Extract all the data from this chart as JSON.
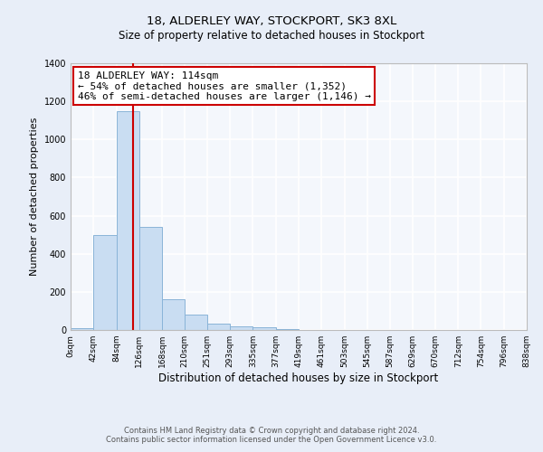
{
  "title": "18, ALDERLEY WAY, STOCKPORT, SK3 8XL",
  "subtitle": "Size of property relative to detached houses in Stockport",
  "xlabel": "Distribution of detached houses by size in Stockport",
  "ylabel": "Number of detached properties",
  "bar_edges": [
    0,
    42,
    84,
    126,
    168,
    210,
    251,
    293,
    335,
    377,
    419,
    461,
    503,
    545,
    587,
    629,
    670,
    712,
    754,
    796,
    838
  ],
  "bar_heights": [
    10,
    500,
    1150,
    540,
    160,
    80,
    35,
    20,
    15,
    5,
    0,
    0,
    0,
    0,
    0,
    0,
    0,
    0,
    0,
    0
  ],
  "bar_color": "#c9ddf2",
  "bar_edgecolor": "#8ab4d8",
  "property_line_x": 114,
  "property_line_color": "#cc0000",
  "annotation_text": "18 ALDERLEY WAY: 114sqm\n← 54% of detached houses are smaller (1,352)\n46% of semi-detached houses are larger (1,146) →",
  "annotation_box_edgecolor": "#cc0000",
  "ylim": [
    0,
    1400
  ],
  "yticks": [
    0,
    200,
    400,
    600,
    800,
    1000,
    1200,
    1400
  ],
  "tick_labels": [
    "0sqm",
    "42sqm",
    "84sqm",
    "126sqm",
    "168sqm",
    "210sqm",
    "251sqm",
    "293sqm",
    "335sqm",
    "377sqm",
    "419sqm",
    "461sqm",
    "503sqm",
    "545sqm",
    "587sqm",
    "629sqm",
    "670sqm",
    "712sqm",
    "754sqm",
    "796sqm",
    "838sqm"
  ],
  "bg_color": "#e8eef8",
  "plot_bg_color": "#f4f7fc",
  "grid_color": "#ffffff",
  "footer_line1": "Contains HM Land Registry data © Crown copyright and database right 2024.",
  "footer_line2": "Contains public sector information licensed under the Open Government Licence v3.0."
}
